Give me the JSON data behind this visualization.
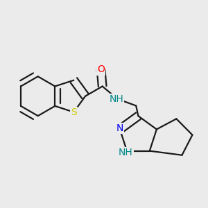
{
  "background_color": "#ebebeb",
  "bond_color": "#1a1a1a",
  "bond_width": 1.6,
  "dbo": 0.018,
  "atom_colors": {
    "S": "#cccc00",
    "N": "#0000ee",
    "O": "#ff0000",
    "NH": "#008888",
    "C": "#1a1a1a"
  },
  "font_size": 10
}
